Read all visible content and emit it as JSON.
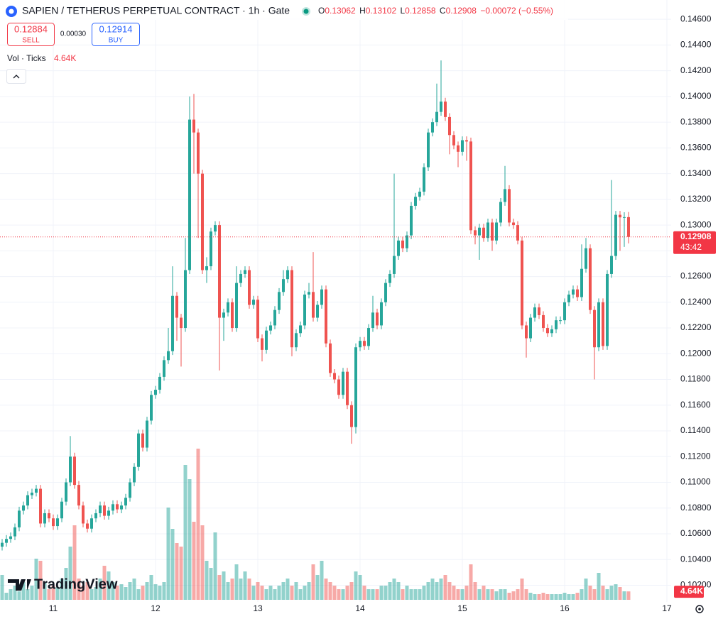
{
  "header": {
    "title": "SAPIEN / TETHERUS PERPETUAL CONTRACT · 1h · Gate",
    "ohlc_labels": [
      "O",
      "H",
      "L",
      "C"
    ],
    "change": "−0.00072 (−0.55%)",
    "sell_price": "0.12884",
    "sell": "SELL",
    "spread": "0.00030",
    "buy_price": "0.12914",
    "buy": "BUY",
    "indicator": "Vol · Ticks",
    "indicator_value": "4.64K",
    "countdown": "43:42",
    "logo": "TradingView"
  },
  "chart_data": {
    "type": "candlestick",
    "up_color": "#26a69a",
    "down_color": "#ef5350",
    "last_price_color": "#f23645",
    "grid": true,
    "ylim": [
      0.1007,
      0.1475
    ],
    "yticks": [
      {
        "value": 0.102,
        "label": "0.10200"
      },
      {
        "value": 0.104,
        "label": "0.10400"
      },
      {
        "value": 0.106,
        "label": "0.10600"
      },
      {
        "value": 0.108,
        "label": "0.10800"
      },
      {
        "value": 0.11,
        "label": "0.11000"
      },
      {
        "value": 0.112,
        "label": "0.11200"
      },
      {
        "value": 0.114,
        "label": "0.11400"
      },
      {
        "value": 0.116,
        "label": "0.11600"
      },
      {
        "value": 0.118,
        "label": "0.11800"
      },
      {
        "value": 0.12,
        "label": "0.12000"
      },
      {
        "value": 0.122,
        "label": "0.12200"
      },
      {
        "value": 0.124,
        "label": "0.12400"
      },
      {
        "value": 0.126,
        "label": "0.12600"
      },
      {
        "value": 0.128,
        "label": "0.12800"
      },
      {
        "value": 0.13,
        "label": "0.13000"
      },
      {
        "value": 0.132,
        "label": "0.13200"
      },
      {
        "value": 0.134,
        "label": "0.13400"
      },
      {
        "value": 0.136,
        "label": "0.13600"
      },
      {
        "value": 0.138,
        "label": "0.13800"
      },
      {
        "value": 0.14,
        "label": "0.14000"
      },
      {
        "value": 0.142,
        "label": "0.14200"
      },
      {
        "value": 0.144,
        "label": "0.14400"
      },
      {
        "value": 0.146,
        "label": "0.14600"
      }
    ],
    "categories": [
      null,
      null,
      null,
      null,
      null,
      null,
      null,
      null,
      null,
      null,
      null,
      null,
      "11",
      null,
      null,
      null,
      null,
      null,
      null,
      null,
      null,
      null,
      null,
      null,
      null,
      null,
      null,
      null,
      null,
      null,
      null,
      null,
      null,
      null,
      null,
      null,
      "12",
      null,
      null,
      null,
      null,
      null,
      null,
      null,
      null,
      null,
      null,
      null,
      null,
      null,
      null,
      null,
      null,
      null,
      null,
      null,
      null,
      null,
      null,
      null,
      "13",
      null,
      null,
      null,
      null,
      null,
      null,
      null,
      null,
      null,
      null,
      null,
      null,
      null,
      null,
      null,
      null,
      null,
      null,
      null,
      null,
      null,
      null,
      null,
      "14",
      null,
      null,
      null,
      null,
      null,
      null,
      null,
      null,
      null,
      null,
      null,
      null,
      null,
      null,
      null,
      null,
      null,
      null,
      null,
      null,
      null,
      null,
      null,
      "15",
      null,
      null,
      null,
      null,
      null,
      null,
      null,
      null,
      null,
      null,
      null,
      null,
      null,
      null,
      null,
      null,
      null,
      null,
      null,
      null,
      null,
      null,
      null,
      "16",
      null,
      null,
      null,
      null,
      null,
      null,
      null,
      null,
      null,
      null,
      null,
      null,
      null,
      null,
      null,
      null,
      null,
      null,
      null,
      null,
      null,
      null,
      null,
      "17",
      null
    ],
    "open": [
      0.105,
      0.1053,
      0.1056,
      0.1058,
      0.1065,
      0.1078,
      0.1082,
      0.109,
      0.1092,
      0.1095,
      0.1068,
      0.1076,
      0.1072,
      0.1066,
      0.1072,
      0.1085,
      0.11,
      0.112,
      0.1098,
      0.1082,
      0.1068,
      0.1064,
      0.1072,
      0.1076,
      0.1082,
      0.1074,
      0.1078,
      0.1083,
      0.1079,
      0.1082,
      0.1088,
      0.11,
      0.1112,
      0.1138,
      0.1127,
      0.1148,
      0.1168,
      0.1172,
      0.1182,
      0.1195,
      0.1202,
      0.1245,
      0.1228,
      0.122,
      0.1265,
      0.1382,
      0.1372,
      0.134,
      0.1265,
      0.1268,
      0.1295,
      0.13,
      0.1228,
      0.1232,
      0.124,
      0.122,
      0.1255,
      0.1262,
      0.1265,
      0.1238,
      0.1242,
      0.1212,
      0.1203,
      0.1218,
      0.1222,
      0.1234,
      0.1248,
      0.1258,
      0.1265,
      0.1205,
      0.1216,
      0.1222,
      0.1246,
      0.1248,
      0.1228,
      0.1238,
      0.125,
      0.1208,
      0.1185,
      0.118,
      0.1168,
      0.1186,
      0.116,
      0.1143,
      0.1205,
      0.121,
      0.1206,
      0.122,
      0.1232,
      0.1222,
      0.124,
      0.1255,
      0.1262,
      0.1276,
      0.1288,
      0.1282,
      0.1292,
      0.1315,
      0.1322,
      0.1326,
      0.1345,
      0.1372,
      0.138,
      0.1388,
      0.1396,
      0.1384,
      0.137,
      0.1362,
      0.1357,
      0.1366,
      0.1365,
      0.1296,
      0.1292,
      0.1298,
      0.129,
      0.1302,
      0.1288,
      0.1302,
      0.1318,
      0.1328,
      0.1302,
      0.13,
      0.1288,
      0.1222,
      0.1212,
      0.1228,
      0.1236,
      0.123,
      0.122,
      0.1216,
      0.1219,
      0.1226,
      0.1226,
      0.124,
      0.1246,
      0.125,
      0.1244,
      0.1266,
      0.1282,
      0.1234,
      0.1205,
      0.124,
      0.1206,
      0.1262,
      0.1276,
      0.1308,
      0.1306,
      0.13062,
      null,
      null,
      null,
      null,
      null,
      null,
      null,
      null,
      null,
      null
    ],
    "high": [
      0.1056,
      0.1059,
      0.1061,
      0.1068,
      0.1081,
      0.1085,
      0.1093,
      0.1095,
      0.1098,
      0.1098,
      0.1079,
      0.1079,
      0.1075,
      0.1075,
      0.1088,
      0.1103,
      0.1136,
      0.1123,
      0.1101,
      0.1085,
      0.1071,
      0.1075,
      0.1079,
      0.1085,
      0.1085,
      0.1081,
      0.1086,
      0.1086,
      0.1085,
      0.1091,
      0.1103,
      0.1115,
      0.1141,
      0.1141,
      0.1151,
      0.1171,
      0.1175,
      0.1185,
      0.1198,
      0.122,
      0.1268,
      0.1248,
      0.1231,
      0.129,
      0.14,
      0.1402,
      0.1375,
      0.1343,
      0.1275,
      0.1298,
      0.1303,
      0.1303,
      0.1235,
      0.1243,
      0.1243,
      0.1268,
      0.1265,
      0.1268,
      0.1268,
      0.1245,
      0.1245,
      0.1215,
      0.1221,
      0.1225,
      0.1237,
      0.1251,
      0.1265,
      0.1268,
      0.1268,
      0.1219,
      0.1225,
      0.1249,
      0.1255,
      0.1279,
      0.1241,
      0.1253,
      0.1253,
      0.1211,
      0.1188,
      0.1183,
      0.1189,
      0.1189,
      0.1163,
      0.1208,
      0.1213,
      0.1213,
      0.1223,
      0.1245,
      0.1235,
      0.1243,
      0.1258,
      0.1265,
      0.134,
      0.1291,
      0.1291,
      0.1295,
      0.1318,
      0.1325,
      0.1329,
      0.1348,
      0.1375,
      0.1383,
      0.141,
      0.1428,
      0.1399,
      0.1387,
      0.1373,
      0.1365,
      0.1369,
      0.1369,
      0.1368,
      0.1299,
      0.1301,
      0.1301,
      0.1305,
      0.1305,
      0.1305,
      0.1321,
      0.1346,
      0.1331,
      0.1305,
      0.1303,
      0.1291,
      0.1225,
      0.1231,
      0.1239,
      0.1239,
      0.1233,
      0.1223,
      0.1222,
      0.1229,
      0.1229,
      0.1243,
      0.1249,
      0.1253,
      0.1253,
      0.1285,
      0.129,
      0.1285,
      0.1237,
      0.1243,
      0.1243,
      0.1265,
      0.1335,
      0.1311,
      0.1311,
      0.131,
      0.13102,
      null,
      null,
      null,
      null,
      null,
      null,
      null,
      null,
      null,
      null
    ],
    "low": [
      0.1047,
      0.105,
      0.1053,
      0.1055,
      0.1062,
      0.1075,
      0.1079,
      0.1087,
      0.1089,
      0.1065,
      0.1065,
      0.1069,
      0.1063,
      0.1063,
      0.1069,
      0.1082,
      0.1097,
      0.1095,
      0.1079,
      0.1065,
      0.1061,
      0.1061,
      0.1069,
      0.1073,
      0.1071,
      0.1071,
      0.1075,
      0.1076,
      0.1076,
      0.1079,
      0.1085,
      0.1097,
      0.1109,
      0.1124,
      0.1124,
      0.1145,
      0.1165,
      0.1169,
      0.1179,
      0.1192,
      0.1199,
      0.121,
      0.119,
      0.1217,
      0.1262,
      0.134,
      0.129,
      0.1262,
      0.1255,
      0.1265,
      0.1292,
      0.1187,
      0.121,
      0.1229,
      0.1217,
      0.1217,
      0.1252,
      0.1259,
      0.1235,
      0.1235,
      0.1209,
      0.1194,
      0.12,
      0.1215,
      0.1219,
      0.1231,
      0.1245,
      0.1255,
      0.1198,
      0.1202,
      0.1213,
      0.1219,
      0.1243,
      0.1225,
      0.1225,
      0.1235,
      0.1205,
      0.1182,
      0.1177,
      0.1165,
      0.1165,
      0.1157,
      0.113,
      0.1138,
      0.1202,
      0.1203,
      0.1203,
      0.1217,
      0.1219,
      0.1219,
      0.1237,
      0.1252,
      0.1259,
      0.1273,
      0.1279,
      0.1279,
      0.1289,
      0.1312,
      0.1319,
      0.1323,
      0.1342,
      0.1369,
      0.1377,
      0.1385,
      0.1381,
      0.1355,
      0.1359,
      0.1345,
      0.1354,
      0.135,
      0.1293,
      0.1285,
      0.1273,
      0.1287,
      0.1287,
      0.128,
      0.1285,
      0.1299,
      0.1315,
      0.1299,
      0.1297,
      0.1285,
      0.1219,
      0.1197,
      0.1209,
      0.1225,
      0.1227,
      0.1217,
      0.1213,
      0.1213,
      0.1216,
      0.1223,
      0.1223,
      0.1237,
      0.1243,
      0.1241,
      0.1241,
      0.1263,
      0.1231,
      0.118,
      0.1202,
      0.1203,
      0.1203,
      0.1259,
      0.1273,
      0.128,
      0.1283,
      0.12858,
      null,
      null,
      null,
      null,
      null,
      null,
      null,
      null,
      null,
      null
    ],
    "close": [
      0.1053,
      0.1056,
      0.1058,
      0.1065,
      0.1078,
      0.1082,
      0.109,
      0.1092,
      0.1095,
      0.1068,
      0.1076,
      0.1072,
      0.1066,
      0.1072,
      0.1085,
      0.11,
      0.112,
      0.1098,
      0.1082,
      0.1068,
      0.1064,
      0.1072,
      0.1076,
      0.1082,
      0.1074,
      0.1078,
      0.1083,
      0.1079,
      0.1082,
      0.1088,
      0.11,
      0.1112,
      0.1138,
      0.1127,
      0.1148,
      0.1168,
      0.1172,
      0.1182,
      0.1195,
      0.1202,
      0.1245,
      0.1228,
      0.122,
      0.1265,
      0.1382,
      0.1372,
      0.134,
      0.1265,
      0.1268,
      0.1295,
      0.13,
      0.1228,
      0.1232,
      0.124,
      0.122,
      0.1255,
      0.1262,
      0.1265,
      0.1238,
      0.1242,
      0.1212,
      0.1203,
      0.1218,
      0.1222,
      0.1234,
      0.1248,
      0.1258,
      0.1265,
      0.1205,
      0.1216,
      0.1222,
      0.1246,
      0.1248,
      0.1228,
      0.1238,
      0.125,
      0.1208,
      0.1185,
      0.118,
      0.1168,
      0.1186,
      0.116,
      0.1143,
      0.1205,
      0.121,
      0.1206,
      0.122,
      0.1232,
      0.1222,
      0.124,
      0.1255,
      0.1262,
      0.1276,
      0.1288,
      0.1282,
      0.1292,
      0.1315,
      0.1322,
      0.1326,
      0.1345,
      0.1372,
      0.138,
      0.1388,
      0.1396,
      0.1384,
      0.137,
      0.1362,
      0.1357,
      0.1366,
      0.1365,
      0.1296,
      0.1292,
      0.1298,
      0.129,
      0.1302,
      0.1288,
      0.1302,
      0.1318,
      0.1328,
      0.1302,
      0.13,
      0.1288,
      0.1222,
      0.1212,
      0.1228,
      0.1236,
      0.123,
      0.122,
      0.1216,
      0.1219,
      0.1226,
      0.1226,
      0.124,
      0.1246,
      0.125,
      0.1244,
      0.1266,
      0.1282,
      0.1234,
      0.1205,
      0.124,
      0.1206,
      0.1262,
      0.1276,
      0.1308,
      0.1306,
      0.13062,
      0.12908,
      null,
      null,
      null,
      null,
      null,
      null,
      null,
      null,
      null,
      null
    ],
    "volume": [
      13650,
      3900,
      5850,
      7800,
      4680,
      9750,
      5850,
      7800,
      22620,
      21450,
      9750,
      5850,
      7800,
      7020,
      11700,
      17550,
      29250,
      40950,
      11700,
      7800,
      9750,
      5850,
      7020,
      11700,
      18720,
      15600,
      9750,
      7800,
      8580,
      7020,
      9750,
      11700,
      5850,
      7800,
      9750,
      13650,
      8580,
      7800,
      9750,
      50700,
      39000,
      31200,
      29250,
      74100,
      66300,
      42900,
      83070,
      40950,
      21450,
      17550,
      37050,
      13650,
      15600,
      9750,
      11700,
      19500,
      11700,
      15600,
      11700,
      7800,
      9750,
      7800,
      5850,
      7800,
      5850,
      7800,
      9750,
      11700,
      7800,
      9750,
      5850,
      7800,
      9750,
      19500,
      13650,
      21450,
      11700,
      9750,
      7800,
      5850,
      5850,
      7800,
      9750,
      15600,
      13650,
      7800,
      5850,
      5850,
      5850,
      7800,
      7800,
      9750,
      11700,
      9750,
      5850,
      7800,
      5850,
      5850,
      5850,
      7800,
      9750,
      11700,
      9750,
      11700,
      13650,
      9750,
      7800,
      5850,
      5850,
      7800,
      19500,
      9750,
      5850,
      7800,
      5850,
      5850,
      4680,
      5850,
      5850,
      3900,
      4680,
      5850,
      11700,
      5850,
      3900,
      3120,
      3120,
      3900,
      3120,
      3120,
      3120,
      3120,
      3900,
      3120,
      3120,
      3900,
      5850,
      11700,
      7800,
      5850,
      14820,
      7800,
      5850,
      7800,
      8580,
      7020,
      4680,
      4640,
      null,
      null,
      null,
      null,
      null,
      null,
      null,
      null,
      null,
      null
    ]
  }
}
